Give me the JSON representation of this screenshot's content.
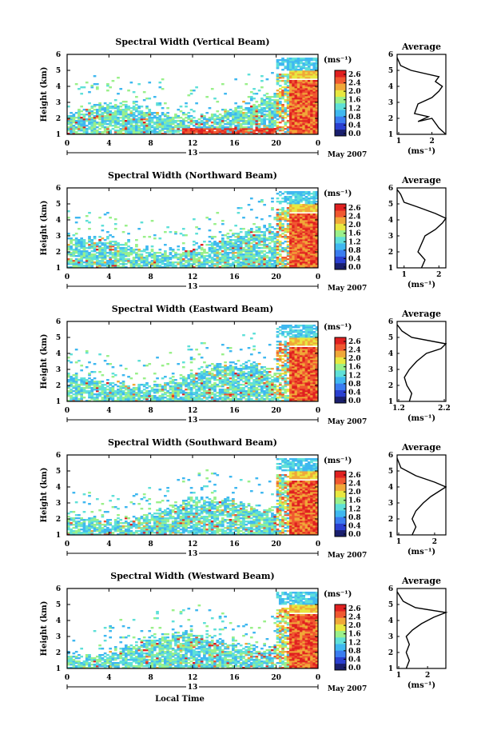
{
  "chart_data": [
    {
      "type": "heatmap",
      "title": "Spectral Width (Vertical Beam)",
      "ylabel": "Height (km)",
      "ylim": [
        1,
        6
      ],
      "y_ticks": [
        "1",
        "2",
        "3",
        "4",
        "5",
        "6"
      ],
      "x_ticks": [
        "0",
        "4",
        "8",
        "12",
        "16",
        "20",
        "0"
      ],
      "date_label": "13",
      "month_label": "May 2007",
      "colorbar": {
        "unit": "(ms⁻¹)",
        "ticks": [
          "2.6",
          "2.4",
          "2.0",
          "1.6",
          "1.2",
          "0.8",
          "0.4",
          "0.0"
        ]
      },
      "average": {
        "title": "Average",
        "xlabel": "(ms⁻¹)",
        "xlim": [
          1,
          2.4
        ],
        "x_ticks": [
          "1",
          "2"
        ],
        "profile": [
          [
            1.0,
            2.4
          ],
          [
            1.4,
            2.2
          ],
          [
            2.0,
            2.0
          ],
          [
            1.8,
            1.6
          ],
          [
            2.1,
            1.9
          ],
          [
            2.3,
            1.5
          ],
          [
            2.9,
            1.6
          ],
          [
            3.3,
            2.0
          ],
          [
            3.7,
            2.2
          ],
          [
            4.0,
            2.3
          ],
          [
            4.3,
            2.1
          ],
          [
            4.6,
            2.2
          ],
          [
            5.0,
            1.4
          ],
          [
            5.3,
            1.1
          ],
          [
            5.8,
            1.0
          ]
        ]
      }
    },
    {
      "type": "heatmap",
      "title": "Spectral Width (Northward Beam)",
      "ylabel": "Height (km)",
      "ylim": [
        1,
        6
      ],
      "y_ticks": [
        "1",
        "2",
        "3",
        "4",
        "5",
        "6"
      ],
      "x_ticks": [
        "0",
        "4",
        "8",
        "12",
        "16",
        "20",
        "0"
      ],
      "date_label": "13",
      "month_label": "May 2007",
      "colorbar": {
        "unit": "(ms⁻¹)",
        "ticks": [
          "2.6",
          "2.4",
          "2.0",
          "1.6",
          "1.2",
          "0.8",
          "0.4",
          "0.0"
        ]
      },
      "average": {
        "title": "Average",
        "xlabel": "(ms⁻¹)",
        "xlim": [
          0.8,
          2.2
        ],
        "x_ticks": [
          "1",
          "2"
        ],
        "profile": [
          [
            1.0,
            1.5
          ],
          [
            1.5,
            1.6
          ],
          [
            2.0,
            1.4
          ],
          [
            2.5,
            1.5
          ],
          [
            3.0,
            1.6
          ],
          [
            3.4,
            1.9
          ],
          [
            3.8,
            2.1
          ],
          [
            4.1,
            2.2
          ],
          [
            4.4,
            1.9
          ],
          [
            4.8,
            1.4
          ],
          [
            5.1,
            1.0
          ],
          [
            5.6,
            0.9
          ],
          [
            5.9,
            0.8
          ]
        ]
      }
    },
    {
      "type": "heatmap",
      "title": "Spectral Width (Eastward Beam)",
      "ylabel": "Height (km)",
      "ylim": [
        1,
        6
      ],
      "y_ticks": [
        "1",
        "2",
        "3",
        "4",
        "5",
        "6"
      ],
      "x_ticks": [
        "0",
        "4",
        "8",
        "12",
        "16",
        "20",
        "0"
      ],
      "date_label": "13",
      "month_label": "May 2007",
      "colorbar": {
        "unit": "(ms⁻¹)",
        "ticks": [
          "2.6",
          "2.4",
          "2.0",
          "1.6",
          "1.2",
          "0.8",
          "0.4",
          "0.0"
        ]
      },
      "average": {
        "title": "Average",
        "xlabel": "(ms⁻¹)",
        "xlim": [
          1.2,
          2.2
        ],
        "x_ticks": [
          "1.2",
          "2.2"
        ],
        "profile": [
          [
            1.0,
            1.45
          ],
          [
            1.5,
            1.5
          ],
          [
            2.0,
            1.4
          ],
          [
            2.5,
            1.35
          ],
          [
            3.0,
            1.45
          ],
          [
            3.5,
            1.6
          ],
          [
            4.0,
            1.8
          ],
          [
            4.3,
            2.1
          ],
          [
            4.6,
            2.2
          ],
          [
            5.0,
            1.5
          ],
          [
            5.4,
            1.3
          ],
          [
            5.8,
            1.2
          ]
        ]
      }
    },
    {
      "type": "heatmap",
      "title": "Spectral Width (Southward Beam)",
      "ylabel": "Height (km)",
      "ylim": [
        1,
        6
      ],
      "y_ticks": [
        "1",
        "2",
        "3",
        "4",
        "5",
        "6"
      ],
      "x_ticks": [
        "0",
        "4",
        "8",
        "12",
        "16",
        "20",
        "0"
      ],
      "date_label": "13",
      "month_label": "May 2007",
      "colorbar": {
        "unit": "(ms⁻¹)",
        "ticks": [
          "2.6",
          "2.4",
          "2.0",
          "1.6",
          "1.2",
          "0.8",
          "0.4",
          "0.0"
        ]
      },
      "average": {
        "title": "Average",
        "xlabel": "(ms⁻¹)",
        "xlim": [
          1,
          2.3
        ],
        "x_ticks": [
          "1",
          "2"
        ],
        "profile": [
          [
            1.0,
            1.4
          ],
          [
            1.5,
            1.5
          ],
          [
            2.0,
            1.4
          ],
          [
            2.5,
            1.5
          ],
          [
            3.0,
            1.7
          ],
          [
            3.4,
            1.9
          ],
          [
            3.7,
            2.1
          ],
          [
            4.0,
            2.3
          ],
          [
            4.3,
            2.0
          ],
          [
            4.7,
            1.5
          ],
          [
            5.2,
            1.1
          ],
          [
            5.8,
            1.0
          ]
        ]
      }
    },
    {
      "type": "heatmap",
      "title": "Spectral Width (Westward Beam)",
      "ylabel": "Height (km)",
      "xlabel": "Local Time",
      "ylim": [
        1,
        6
      ],
      "y_ticks": [
        "1",
        "2",
        "3",
        "4",
        "5",
        "6"
      ],
      "x_ticks": [
        "0",
        "4",
        "8",
        "12",
        "16",
        "20",
        "0"
      ],
      "date_label": "13",
      "month_label": "May 2007",
      "colorbar": {
        "unit": "(ms⁻¹)",
        "ticks": [
          "2.6",
          "2.4",
          "2.0",
          "1.6",
          "1.2",
          "0.8",
          "0.4",
          "0.0"
        ]
      },
      "average": {
        "title": "Average",
        "xlabel": "(ms⁻¹)",
        "xlim": [
          1,
          2.6
        ],
        "x_ticks": [
          "1",
          "2"
        ],
        "profile": [
          [
            1.0,
            1.3
          ],
          [
            1.5,
            1.4
          ],
          [
            2.0,
            1.3
          ],
          [
            2.5,
            1.4
          ],
          [
            3.0,
            1.3
          ],
          [
            3.4,
            1.5
          ],
          [
            3.8,
            1.8
          ],
          [
            4.2,
            2.2
          ],
          [
            4.5,
            2.6
          ],
          [
            4.8,
            1.6
          ],
          [
            5.2,
            1.2
          ],
          [
            5.8,
            1.0
          ]
        ]
      }
    }
  ],
  "colors": {
    "scale": [
      "#1a1f6e",
      "#2a3fd0",
      "#3a7cf0",
      "#3fb8f0",
      "#5fe0d8",
      "#9af08a",
      "#e8e840",
      "#f0a838",
      "#f05830",
      "#e02020"
    ]
  }
}
